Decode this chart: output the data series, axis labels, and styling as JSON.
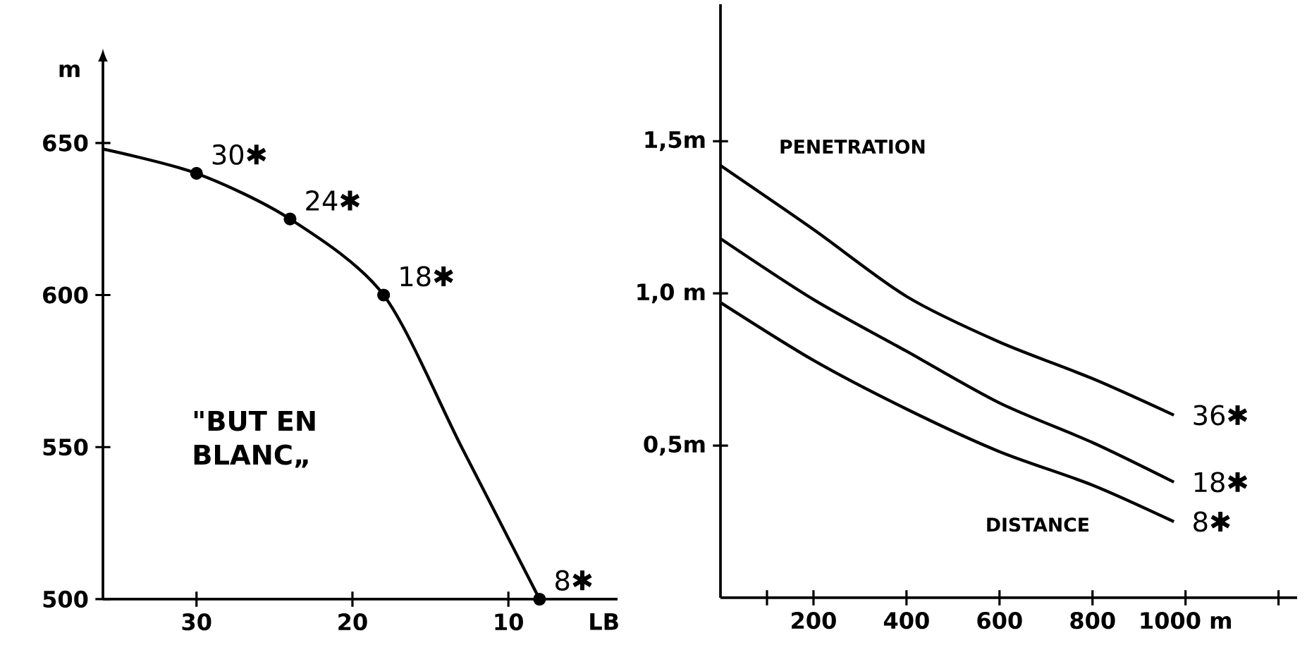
{
  "chart_data": [
    {
      "type": "line",
      "xlabel": "LB",
      "ylabel": "m",
      "xlim": [
        36,
        3
      ],
      "ylim": [
        500,
        678
      ],
      "xticks": [
        30,
        20,
        10
      ],
      "yticks": [
        500,
        550,
        600,
        650
      ],
      "series": [
        {
          "type": "line",
          "color": "#000000",
          "x": [
            36,
            30,
            24,
            18,
            13,
            8
          ],
          "values": [
            648,
            640,
            625,
            600,
            550,
            500
          ]
        },
        {
          "type": "scatter",
          "color": "#000000",
          "x": [
            30,
            24,
            18,
            8
          ],
          "values": [
            640,
            625,
            600,
            500
          ]
        }
      ],
      "annotations": [
        {
          "text": "30✱",
          "x": 30,
          "y": 640
        },
        {
          "text": "24✱",
          "x": 24,
          "y": 625
        },
        {
          "text": "18✱",
          "x": 18,
          "y": 600
        },
        {
          "text": "8✱",
          "x": 8,
          "y": 500
        },
        "\"BUT EN BLANC„"
      ]
    },
    {
      "type": "line",
      "xlabel": "DISTANCE",
      "ylabel": "PENETRATION",
      "xlim": [
        0,
        1240
      ],
      "ylim": [
        0,
        1.95
      ],
      "xticks": [
        {
          "value": 100,
          "label": null
        },
        200,
        400,
        600,
        800,
        {
          "value": 1000,
          "label": "1000 m"
        },
        {
          "value": 1200,
          "label": null
        }
      ],
      "yticks": [
        {
          "value": 0.5,
          "label": "0,5m"
        },
        {
          "value": 1.0,
          "label": "1,0 m"
        },
        {
          "value": 1.5,
          "label": "1,5m"
        }
      ],
      "series": [
        {
          "name": "36✱",
          "color": "#000000",
          "x": [
            0,
            200,
            400,
            600,
            800,
            975
          ],
          "values": [
            1.42,
            1.21,
            0.99,
            0.84,
            0.72,
            0.6
          ]
        },
        {
          "name": "18✱",
          "color": "#000000",
          "x": [
            0,
            200,
            400,
            600,
            800,
            975
          ],
          "values": [
            1.18,
            0.98,
            0.81,
            0.64,
            0.51,
            0.38
          ]
        },
        {
          "name": "8✱",
          "color": "#000000",
          "x": [
            0,
            200,
            400,
            600,
            800,
            975
          ],
          "values": [
            0.97,
            0.78,
            0.62,
            0.48,
            0.37,
            0.25
          ]
        }
      ]
    }
  ]
}
